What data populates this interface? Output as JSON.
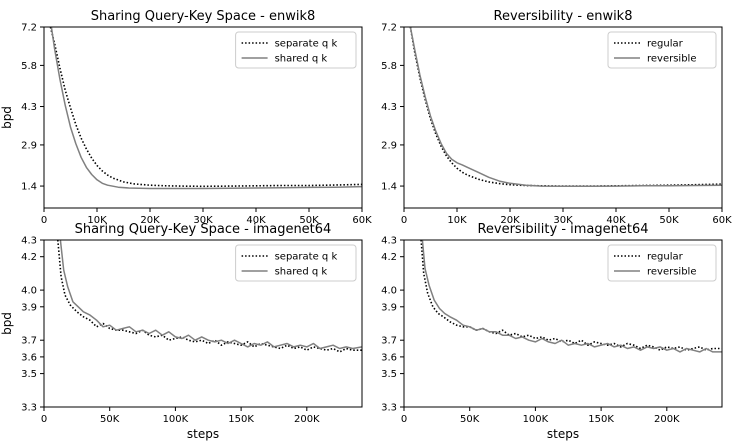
{
  "figure": {
    "chart_data": [
      {
        "type": "line",
        "title": "Sharing Query-Key Space - enwik8",
        "ylabel": "bpd",
        "xlabel": "",
        "xlim": [
          0,
          60000
        ],
        "ylim": [
          0.6,
          7.2
        ],
        "xticks": [
          0,
          10000,
          20000,
          30000,
          40000,
          50000,
          60000
        ],
        "xtick_labels": [
          "0",
          "10K",
          "20K",
          "30K",
          "40K",
          "50K",
          "60K"
        ],
        "yticks": [
          1.4,
          2.9,
          4.3,
          5.8,
          7.2
        ],
        "ytick_labels": [
          "1.4",
          "2.9",
          "4.3",
          "5.8",
          "7.2"
        ],
        "legend_position": "top-right",
        "series": [
          {
            "name": "separate q k",
            "style": "dotted",
            "color": "#000000",
            "x": [
              1200,
              2000,
              3000,
              4000,
              5000,
              6000,
              7000,
              8000,
              9000,
              10000,
              11000,
              12000,
              13000,
              15000,
              17000,
              20000,
              23000,
              26000,
              30000,
              35000,
              40000,
              45000,
              50000,
              55000,
              60000
            ],
            "y": [
              7.2,
              6.6,
              5.7,
              4.9,
              4.25,
              3.65,
              3.15,
              2.75,
              2.42,
              2.15,
              1.95,
              1.8,
              1.69,
              1.55,
              1.48,
              1.43,
              1.41,
              1.4,
              1.39,
              1.4,
              1.41,
              1.42,
              1.42,
              1.44,
              1.46
            ]
          },
          {
            "name": "shared q k",
            "style": "solid",
            "color": "#808080",
            "x": [
              1400,
              2000,
              3000,
              4000,
              5000,
              6000,
              7000,
              8000,
              9000,
              10000,
              11000,
              12000,
              14000,
              16000,
              18000,
              20000,
              23000,
              26000,
              30000,
              35000,
              40000,
              45000,
              50000,
              55000,
              60000
            ],
            "y": [
              7.2,
              6.4,
              5.3,
              4.35,
              3.55,
              2.95,
              2.45,
              2.08,
              1.82,
              1.63,
              1.5,
              1.43,
              1.36,
              1.33,
              1.32,
              1.31,
              1.31,
              1.31,
              1.31,
              1.32,
              1.33,
              1.34,
              1.35,
              1.36,
              1.38
            ]
          }
        ]
      },
      {
        "type": "line",
        "title": "Reversibility - enwik8",
        "ylabel": "",
        "xlabel": "",
        "xlim": [
          0,
          60000
        ],
        "ylim": [
          0.6,
          7.2
        ],
        "xticks": [
          0,
          10000,
          20000,
          30000,
          40000,
          50000,
          60000
        ],
        "xtick_labels": [
          "0",
          "10K",
          "20K",
          "30K",
          "40K",
          "50K",
          "60K"
        ],
        "yticks": [
          1.4,
          2.9,
          4.3,
          5.8,
          7.2
        ],
        "ytick_labels": [
          "1.4",
          "2.9",
          "4.3",
          "5.8",
          "7.2"
        ],
        "legend_position": "top-right",
        "series": [
          {
            "name": "regular",
            "style": "dotted",
            "color": "#000000",
            "x": [
              1200,
              2000,
              3000,
              4000,
              5000,
              6000,
              7000,
              8000,
              9000,
              10000,
              11000,
              12000,
              14000,
              16000,
              18000,
              20000,
              23000,
              26000,
              30000,
              35000,
              40000,
              45000,
              50000,
              55000,
              60000
            ],
            "y": [
              7.2,
              6.3,
              5.35,
              4.55,
              3.85,
              3.3,
              2.85,
              2.5,
              2.25,
              2.05,
              1.9,
              1.8,
              1.65,
              1.55,
              1.49,
              1.45,
              1.42,
              1.41,
              1.4,
              1.4,
              1.41,
              1.42,
              1.43,
              1.45,
              1.47
            ]
          },
          {
            "name": "reversible",
            "style": "solid",
            "color": "#808080",
            "x": [
              1200,
              2000,
              3000,
              4000,
              5000,
              6000,
              7000,
              8000,
              9000,
              10000,
              11000,
              12000,
              14000,
              16000,
              18000,
              20000,
              23000,
              26000,
              30000,
              35000,
              40000,
              45000,
              50000,
              55000,
              60000
            ],
            "y": [
              7.2,
              6.4,
              5.45,
              4.65,
              3.95,
              3.4,
              2.95,
              2.6,
              2.38,
              2.25,
              2.17,
              2.08,
              1.9,
              1.72,
              1.58,
              1.5,
              1.43,
              1.4,
              1.39,
              1.39,
              1.4,
              1.41,
              1.41,
              1.42,
              1.43
            ]
          }
        ]
      },
      {
        "type": "line",
        "title": "Sharing Query-Key Space - imagenet64",
        "ylabel": "bpd",
        "xlabel": "steps",
        "xlim": [
          0,
          242000
        ],
        "ylim": [
          3.3,
          4.3
        ],
        "xticks": [
          0,
          50000,
          100000,
          150000,
          200000
        ],
        "xtick_labels": [
          "0",
          "50K",
          "100K",
          "150K",
          "200K"
        ],
        "yticks": [
          3.3,
          3.5,
          3.6,
          3.7,
          3.9,
          4.0,
          4.2,
          4.3
        ],
        "ytick_labels": [
          "3.3",
          "3.5",
          "3.6",
          "3.7",
          "3.9",
          "4.0",
          "4.2",
          "4.3"
        ],
        "legend_position": "top-right",
        "series": [
          {
            "name": "separate q k",
            "style": "dotted",
            "color": "#000000",
            "x": [
              10500,
              13000,
              16000,
              20000,
              25000,
              30000,
              35000,
              40000,
              45000,
              50000,
              55000,
              60000,
              65000,
              70000,
              75000,
              80000,
              85000,
              90000,
              95000,
              100000,
              105000,
              110000,
              115000,
              120000,
              125000,
              130000,
              135000,
              140000,
              145000,
              150000,
              155000,
              160000,
              165000,
              170000,
              175000,
              180000,
              185000,
              190000,
              195000,
              200000,
              205000,
              210000,
              215000,
              220000,
              225000,
              230000,
              235000,
              242000
            ],
            "y": [
              4.3,
              4.08,
              3.97,
              3.91,
              3.87,
              3.84,
              3.82,
              3.78,
              3.8,
              3.77,
              3.76,
              3.76,
              3.75,
              3.74,
              3.76,
              3.73,
              3.72,
              3.73,
              3.7,
              3.71,
              3.72,
              3.7,
              3.69,
              3.7,
              3.68,
              3.7,
              3.67,
              3.69,
              3.68,
              3.67,
              3.69,
              3.66,
              3.68,
              3.67,
              3.66,
              3.65,
              3.67,
              3.65,
              3.66,
              3.64,
              3.66,
              3.65,
              3.64,
              3.65,
              3.63,
              3.65,
              3.64,
              3.64
            ]
          },
          {
            "name": "shared q k",
            "style": "solid",
            "color": "#808080",
            "x": [
              12500,
              15000,
              18000,
              22000,
              26000,
              30000,
              35000,
              40000,
              45000,
              50000,
              55000,
              60000,
              65000,
              70000,
              75000,
              80000,
              85000,
              90000,
              95000,
              100000,
              105000,
              110000,
              115000,
              120000,
              125000,
              130000,
              135000,
              140000,
              145000,
              150000,
              155000,
              160000,
              165000,
              170000,
              175000,
              180000,
              185000,
              190000,
              195000,
              200000,
              205000,
              210000,
              215000,
              220000,
              225000,
              230000,
              235000,
              242000
            ],
            "y": [
              4.3,
              4.12,
              4.02,
              3.93,
              3.9,
              3.87,
              3.85,
              3.82,
              3.78,
              3.79,
              3.76,
              3.77,
              3.78,
              3.75,
              3.76,
              3.74,
              3.76,
              3.73,
              3.75,
              3.72,
              3.71,
              3.73,
              3.7,
              3.72,
              3.7,
              3.69,
              3.7,
              3.68,
              3.7,
              3.68,
              3.66,
              3.68,
              3.67,
              3.69,
              3.66,
              3.67,
              3.68,
              3.66,
              3.67,
              3.66,
              3.68,
              3.65,
              3.66,
              3.67,
              3.65,
              3.66,
              3.65,
              3.66
            ]
          }
        ]
      },
      {
        "type": "line",
        "title": "Reversibility - imagenet64",
        "ylabel": "",
        "xlabel": "steps",
        "xlim": [
          0,
          242000
        ],
        "ylim": [
          3.3,
          4.3
        ],
        "xticks": [
          0,
          50000,
          100000,
          150000,
          200000
        ],
        "xtick_labels": [
          "0",
          "50K",
          "100K",
          "150K",
          "200K"
        ],
        "yticks": [
          3.3,
          3.5,
          3.6,
          3.7,
          3.9,
          4.0,
          4.2,
          4.3
        ],
        "ytick_labels": [
          "3.3",
          "3.5",
          "3.6",
          "3.7",
          "3.9",
          "4.0",
          "4.2",
          "4.3"
        ],
        "legend_position": "top-right",
        "series": [
          {
            "name": "regular",
            "style": "dotted",
            "color": "#000000",
            "x": [
              13000,
              15000,
              18000,
              22000,
              26000,
              30000,
              35000,
              40000,
              45000,
              50000,
              55000,
              60000,
              65000,
              70000,
              75000,
              80000,
              85000,
              90000,
              95000,
              100000,
              105000,
              110000,
              115000,
              120000,
              125000,
              130000,
              135000,
              140000,
              145000,
              150000,
              155000,
              160000,
              165000,
              170000,
              175000,
              180000,
              185000,
              190000,
              195000,
              200000,
              205000,
              210000,
              215000,
              220000,
              225000,
              230000,
              235000,
              242000
            ],
            "y": [
              4.3,
              4.1,
              3.98,
              3.9,
              3.86,
              3.84,
              3.81,
              3.79,
              3.78,
              3.78,
              3.76,
              3.77,
              3.75,
              3.74,
              3.76,
              3.73,
              3.74,
              3.72,
              3.73,
              3.71,
              3.72,
              3.7,
              3.71,
              3.69,
              3.7,
              3.68,
              3.7,
              3.67,
              3.69,
              3.68,
              3.67,
              3.68,
              3.66,
              3.68,
              3.67,
              3.65,
              3.67,
              3.66,
              3.64,
              3.66,
              3.65,
              3.66,
              3.64,
              3.65,
              3.66,
              3.64,
              3.65,
              3.65
            ]
          },
          {
            "name": "reversible",
            "style": "solid",
            "color": "#808080",
            "x": [
              14000,
              16000,
              19000,
              23000,
              27000,
              31000,
              35000,
              40000,
              45000,
              50000,
              55000,
              60000,
              65000,
              70000,
              75000,
              80000,
              85000,
              90000,
              95000,
              100000,
              105000,
              110000,
              115000,
              120000,
              125000,
              130000,
              135000,
              140000,
              145000,
              150000,
              155000,
              160000,
              165000,
              170000,
              175000,
              180000,
              185000,
              190000,
              195000,
              200000,
              205000,
              210000,
              215000,
              220000,
              225000,
              230000,
              235000,
              242000
            ],
            "y": [
              4.3,
              4.13,
              4.03,
              3.94,
              3.89,
              3.86,
              3.84,
              3.82,
              3.79,
              3.78,
              3.76,
              3.77,
              3.75,
              3.75,
              3.73,
              3.73,
              3.71,
              3.72,
              3.7,
              3.69,
              3.71,
              3.69,
              3.68,
              3.7,
              3.67,
              3.68,
              3.67,
              3.68,
              3.66,
              3.67,
              3.68,
              3.66,
              3.67,
              3.65,
              3.66,
              3.64,
              3.66,
              3.65,
              3.66,
              3.64,
              3.65,
              3.63,
              3.65,
              3.64,
              3.63,
              3.65,
              3.63,
              3.63
            ]
          }
        ]
      }
    ]
  }
}
